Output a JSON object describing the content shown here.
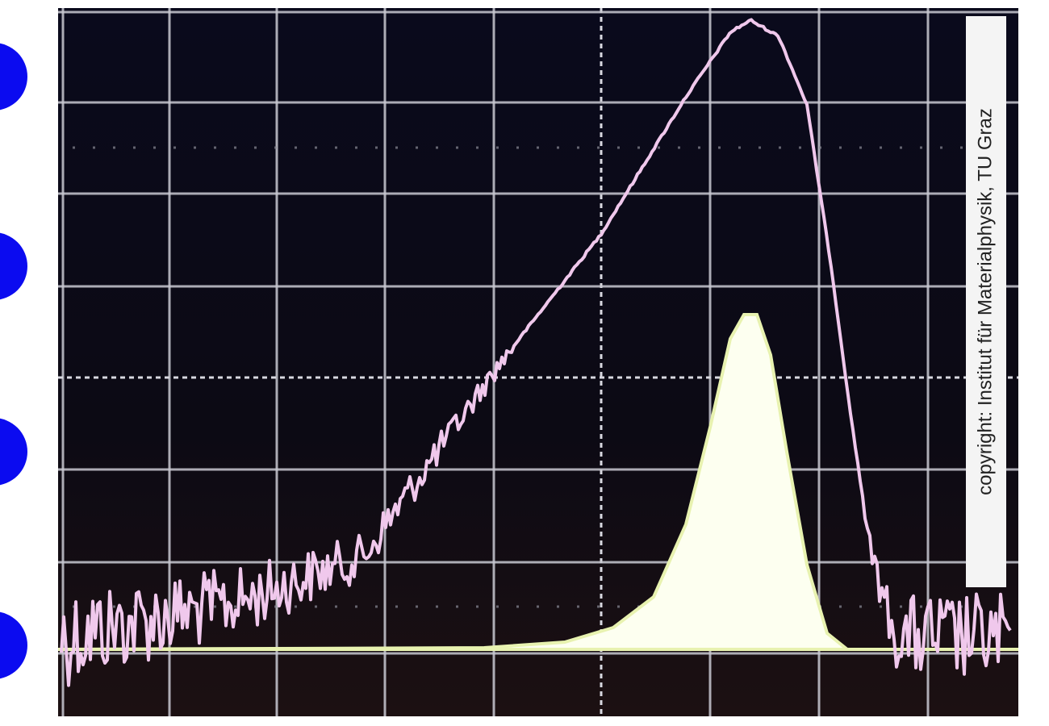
{
  "screen": {
    "copyright": "copyright: Institut für Materialphysik, TU Graz"
  }
}
